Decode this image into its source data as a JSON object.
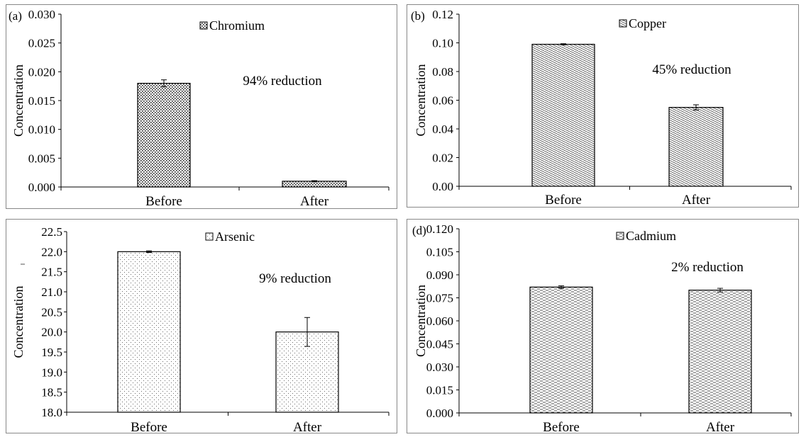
{
  "chart_data": [
    {
      "type": "bar",
      "panel_label": "(a)",
      "categories": [
        "Before",
        "After"
      ],
      "series": [
        {
          "name": "Chromium",
          "values": [
            0.018,
            0.001
          ],
          "errors": [
            0.0006,
            0.0001
          ]
        }
      ],
      "ylabel": "Concentration",
      "ylim": [
        0,
        0.03
      ],
      "yticks": [
        "0.000",
        "0.005",
        "0.010",
        "0.015",
        "0.020",
        "0.025",
        "0.030"
      ],
      "annotation": "94% reduction",
      "pattern": "dots-dense",
      "grid": false,
      "legend": "top-center"
    },
    {
      "type": "bar",
      "panel_label": "(b)",
      "categories": [
        "Before",
        "After"
      ],
      "series": [
        {
          "name": "Copper",
          "values": [
            0.099,
            0.055
          ],
          "errors": [
            0.0004,
            0.0018
          ]
        }
      ],
      "ylabel": "Concentration",
      "ylim": [
        0,
        0.12
      ],
      "yticks": [
        "0.00",
        "0.02",
        "0.04",
        "0.06",
        "0.08",
        "0.10",
        "0.12"
      ],
      "annotation": "45% reduction",
      "pattern": "diagonal",
      "grid": false,
      "legend": "top-center"
    },
    {
      "type": "bar",
      "panel_label": "",
      "categories": [
        "Before",
        "After"
      ],
      "series": [
        {
          "name": "Arsenic",
          "values": [
            22.0,
            20.0
          ],
          "errors": [
            0.02,
            0.36
          ]
        }
      ],
      "ylabel": "Concentration",
      "ylim": [
        18,
        22.5
      ],
      "yticks": [
        "18.0",
        "18.5",
        "19.0",
        "19.5",
        "20.0",
        "20.5",
        "21.0",
        "21.5",
        "22.0",
        "22.5"
      ],
      "annotation": "9% reduction",
      "pattern": "dots-sparse",
      "grid": false,
      "legend": "top-center"
    },
    {
      "type": "bar",
      "panel_label": "(d)",
      "categories": [
        "Before",
        "After"
      ],
      "series": [
        {
          "name": "Cadmium",
          "values": [
            0.082,
            0.08
          ],
          "errors": [
            0.0008,
            0.0012
          ]
        }
      ],
      "ylabel": "Concentration",
      "ylim": [
        0,
        0.12
      ],
      "yticks": [
        "0.000",
        "0.015",
        "0.030",
        "0.045",
        "0.060",
        "0.075",
        "0.090",
        "0.105",
        "0.120"
      ],
      "annotation": "2% reduction",
      "pattern": "dashes",
      "grid": false,
      "legend": "top-center"
    }
  ]
}
